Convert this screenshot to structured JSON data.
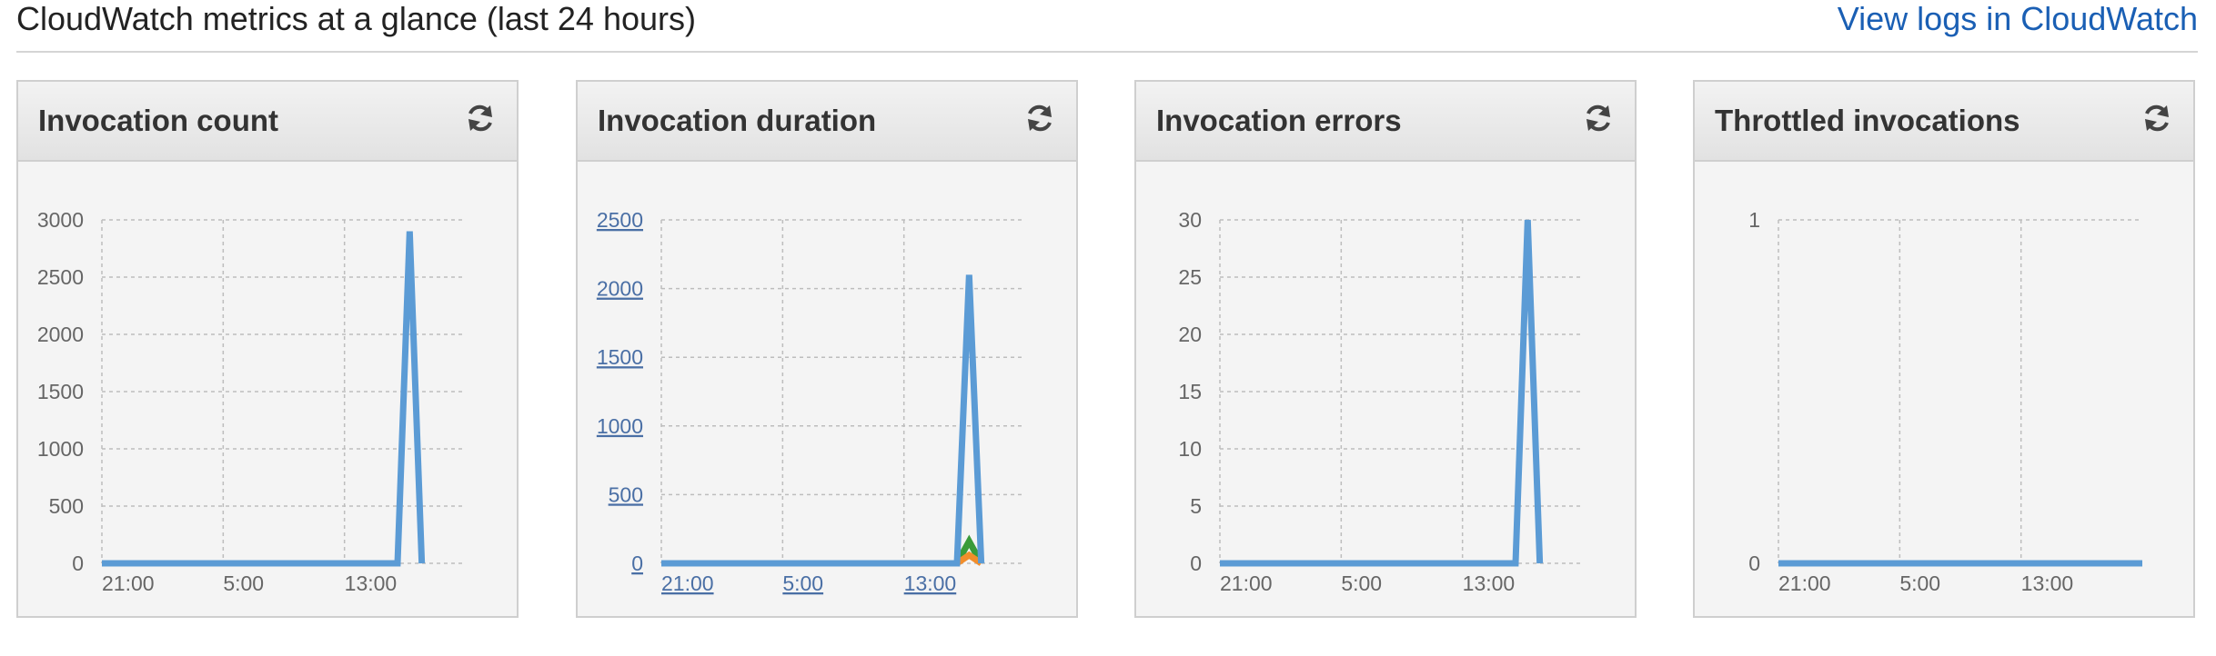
{
  "header": {
    "title": "CloudWatch metrics at a glance (last 24 hours)",
    "view_logs_label": "View logs in CloudWatch"
  },
  "colors": {
    "series_blue": "#5b9bd5",
    "series_orange": "#f28e2b",
    "series_green": "#3a9b3a",
    "grid": "#bdbdbd",
    "link": "#1a5fb4"
  },
  "panels": [
    {
      "title": "Invocation count",
      "refresh_icon": "refresh-icon"
    },
    {
      "title": "Invocation duration",
      "refresh_icon": "refresh-icon"
    },
    {
      "title": "Invocation errors",
      "refresh_icon": "refresh-icon"
    },
    {
      "title": "Throttled invocations",
      "refresh_icon": "refresh-icon"
    }
  ],
  "chart_data": [
    {
      "type": "line",
      "title": "Invocation count",
      "xlabel": "",
      "ylabel": "",
      "x_ticks": [
        "21:00",
        "5:00",
        "13:00"
      ],
      "y_ticks": [
        "0",
        "500",
        "1000",
        "1500",
        "2000",
        "2500",
        "3000"
      ],
      "ylim": [
        0,
        3000
      ],
      "x_range_hours": [
        0,
        24
      ],
      "tick_links": false,
      "grid": true,
      "series": [
        {
          "color": "#5b9bd5",
          "points": [
            [
              0,
              0
            ],
            [
              19.5,
              0
            ],
            [
              20.3,
              2900
            ],
            [
              21.1,
              0
            ]
          ]
        }
      ]
    },
    {
      "type": "line",
      "title": "Invocation duration",
      "xlabel": "",
      "ylabel": "",
      "x_ticks": [
        "21:00",
        "5:00",
        "13:00"
      ],
      "y_ticks": [
        "0",
        "500",
        "1000",
        "1500",
        "2000",
        "2500"
      ],
      "ylim": [
        0,
        2500
      ],
      "x_range_hours": [
        0,
        24
      ],
      "tick_links": true,
      "grid": true,
      "series": [
        {
          "color": "#5b9bd5",
          "points": [
            [
              0,
              0
            ],
            [
              19.5,
              0
            ],
            [
              20.3,
              2100
            ],
            [
              21.1,
              0
            ]
          ]
        },
        {
          "color": "#f28e2b",
          "points": [
            [
              0,
              0
            ],
            [
              19.5,
              0
            ],
            [
              20.3,
              60
            ],
            [
              21.1,
              0
            ]
          ]
        },
        {
          "color": "#3a9b3a",
          "points": [
            [
              0,
              0
            ],
            [
              19.5,
              0
            ],
            [
              20.3,
              160
            ],
            [
              21.1,
              0
            ]
          ]
        }
      ]
    },
    {
      "type": "line",
      "title": "Invocation errors",
      "xlabel": "",
      "ylabel": "",
      "x_ticks": [
        "21:00",
        "5:00",
        "13:00"
      ],
      "y_ticks": [
        "0",
        "5",
        "10",
        "15",
        "20",
        "25",
        "30"
      ],
      "ylim": [
        0,
        30
      ],
      "x_range_hours": [
        0,
        24
      ],
      "tick_links": false,
      "grid": true,
      "series": [
        {
          "color": "#5b9bd5",
          "points": [
            [
              0,
              0
            ],
            [
              19.5,
              0
            ],
            [
              20.3,
              30
            ],
            [
              21.1,
              0
            ]
          ]
        }
      ]
    },
    {
      "type": "line",
      "title": "Throttled invocations",
      "xlabel": "",
      "ylabel": "",
      "x_ticks": [
        "21:00",
        "5:00",
        "13:00"
      ],
      "y_ticks": [
        "0",
        "1"
      ],
      "ylim": [
        0,
        1
      ],
      "x_range_hours": [
        0,
        24
      ],
      "tick_links": false,
      "grid": true,
      "series": [
        {
          "color": "#5b9bd5",
          "points": [
            [
              0,
              0
            ],
            [
              24,
              0
            ]
          ]
        }
      ]
    }
  ]
}
